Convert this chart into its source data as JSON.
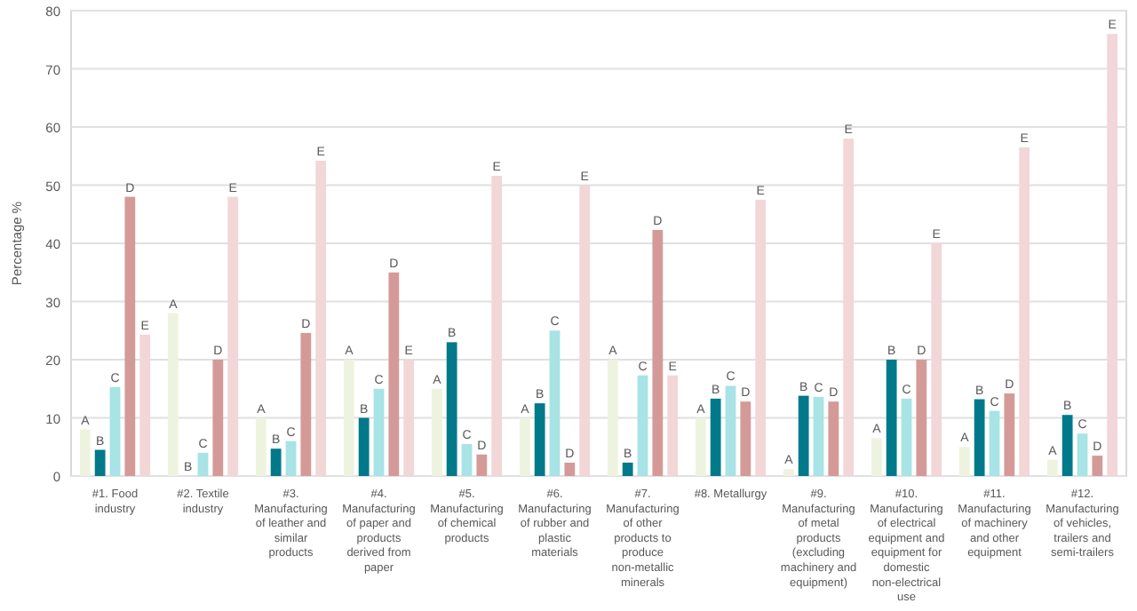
{
  "chart_data": {
    "type": "bar",
    "ylabel": "Percentage %",
    "categories": [
      "#1. Food industry",
      "#2. Textile industry",
      "#3. Manufacturing of leather and similar products",
      "#4. Manufacturing of paper and products derived from paper",
      "#5. Manufacturing of chemical products",
      "#6. Manufacturing of rubber and plastic materials",
      "#7. Manufacturing of other products to produce non-metallic minerals",
      "#8. Metallurgy",
      "#9. Manufacturing of metal products (excluding machinery and equipment)",
      "#10. Manufacturing of electrical equipment and equipment for domestic non-electrical use",
      "#11. Manufacturing of machinery and other equipment",
      "#12. Manufacturing of vehicles, trailers and semi-trailers"
    ],
    "series": [
      {
        "name": "A",
        "color": "#eef3e0",
        "values": [
          8,
          28,
          10,
          20,
          15,
          10,
          20,
          10,
          1.2,
          6.5,
          5,
          2.8
        ]
      },
      {
        "name": "B",
        "color": "#00798a",
        "values": [
          4.5,
          0,
          4.7,
          10,
          23,
          12.5,
          2.3,
          13.3,
          13.8,
          20,
          13.2,
          10.5
        ]
      },
      {
        "name": "C",
        "color": "#a8e3e5",
        "values": [
          15.3,
          4,
          6,
          15,
          5.5,
          25,
          17.3,
          15.5,
          13.6,
          13.3,
          11.2,
          7.3
        ]
      },
      {
        "name": "D",
        "color": "#d49a98",
        "values": [
          48,
          20,
          24.6,
          35,
          3.7,
          2.3,
          42.3,
          12.8,
          12.8,
          20,
          14.2,
          3.5
        ]
      },
      {
        "name": "E",
        "color": "#f2d6d8",
        "values": [
          24.3,
          48,
          54.2,
          20,
          51.6,
          50,
          17.3,
          47.5,
          58,
          40,
          56.5,
          76
        ]
      }
    ],
    "ylim": [
      0,
      80
    ],
    "yticks": [
      0,
      10,
      20,
      30,
      40,
      50,
      60,
      70,
      80
    ],
    "grid": "y"
  }
}
